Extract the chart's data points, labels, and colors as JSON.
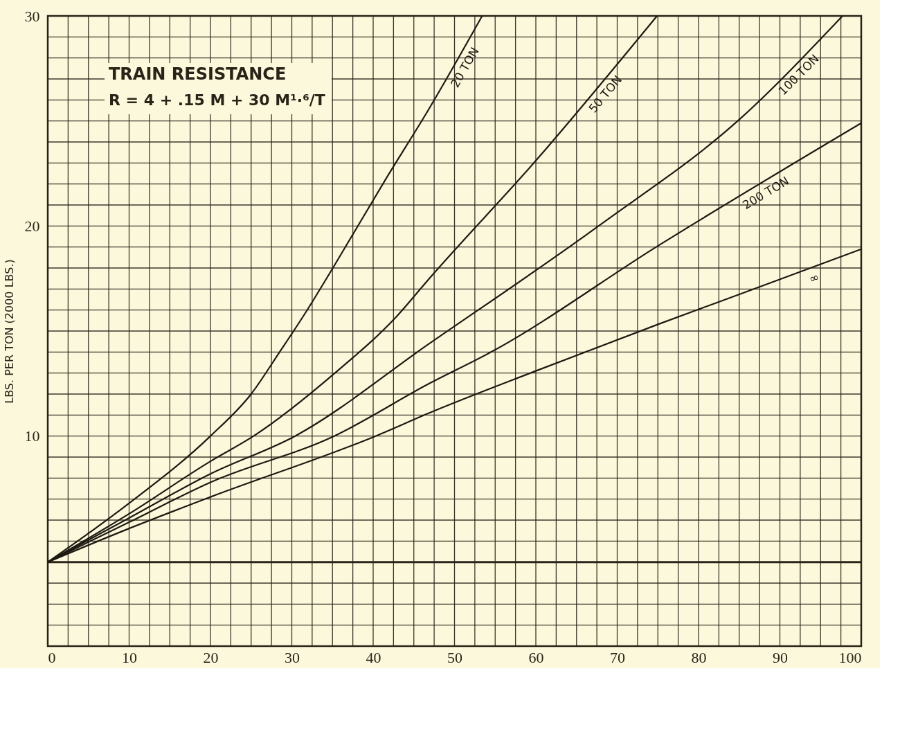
{
  "chart_data": {
    "type": "line",
    "title": "TRAIN RESISTANCE",
    "subtitle": "R = 4 + .15 M + 30 M¹·⁶/T",
    "ylabel": "LBS. PER TON (2000 LBS.)",
    "xlim": [
      0,
      100
    ],
    "ylim": [
      0,
      30
    ],
    "xticks": [
      0,
      {
        "value": 2.5,
        "label": null
      },
      {
        "value": 5,
        "label": null
      },
      {
        "value": 7.5,
        "label": null
      },
      10,
      {
        "value": 12.5,
        "label": null
      },
      {
        "value": 15,
        "label": null
      },
      {
        "value": 17.5,
        "label": null
      },
      20,
      {
        "value": 22.5,
        "label": null
      },
      {
        "value": 25,
        "label": null
      },
      {
        "value": 27.5,
        "label": null
      },
      30,
      {
        "value": 32.5,
        "label": null
      },
      {
        "value": 35,
        "label": null
      },
      {
        "value": 37.5,
        "label": null
      },
      40,
      {
        "value": 42.5,
        "label": null
      },
      {
        "value": 45,
        "label": null
      },
      {
        "value": 47.5,
        "label": null
      },
      50,
      {
        "value": 52.5,
        "label": null
      },
      {
        "value": 55,
        "label": null
      },
      {
        "value": 57.5,
        "label": null
      },
      60,
      {
        "value": 62.5,
        "label": null
      },
      {
        "value": 65,
        "label": null
      },
      {
        "value": 67.5,
        "label": null
      },
      70,
      {
        "value": 72.5,
        "label": null
      },
      {
        "value": 75,
        "label": null
      },
      {
        "value": 77.5,
        "label": null
      },
      80,
      {
        "value": 82.5,
        "label": null
      },
      {
        "value": 85,
        "label": null
      },
      {
        "value": 87.5,
        "label": null
      },
      90,
      {
        "value": 92.5,
        "label": null
      },
      {
        "value": 95,
        "label": null
      },
      {
        "value": 97.5,
        "label": null
      },
      100
    ],
    "yticks": [
      {
        "value": 0,
        "label": null
      },
      {
        "value": 1,
        "label": null
      },
      {
        "value": 2,
        "label": null
      },
      {
        "value": 3,
        "label": null
      },
      {
        "value": 4,
        "label": null
      },
      {
        "value": 5,
        "label": null
      },
      {
        "value": 6,
        "label": null
      },
      {
        "value": 7,
        "label": null
      },
      {
        "value": 8,
        "label": null
      },
      {
        "value": 9,
        "label": null
      },
      10,
      {
        "value": 11,
        "label": null
      },
      {
        "value": 12,
        "label": null
      },
      {
        "value": 13,
        "label": null
      },
      {
        "value": 14,
        "label": null
      },
      {
        "value": 15,
        "label": null
      },
      {
        "value": 16,
        "label": null
      },
      {
        "value": 17,
        "label": null
      },
      {
        "value": 18,
        "label": null
      },
      {
        "value": 19,
        "label": null
      },
      20,
      {
        "value": 21,
        "label": null
      },
      {
        "value": 22,
        "label": null
      },
      {
        "value": 23,
        "label": null
      },
      {
        "value": 24,
        "label": null
      },
      {
        "value": 25,
        "label": null
      },
      {
        "value": 26,
        "label": null
      },
      {
        "value": 27,
        "label": null
      },
      {
        "value": 28,
        "label": null
      },
      {
        "value": 29,
        "label": null
      },
      30
    ],
    "grid": true,
    "marker": "none",
    "line_style": "solid",
    "ref_lines": [
      {
        "axis": "y",
        "value": 4,
        "color": "#2a2418"
      }
    ],
    "series": [
      {
        "name": "20 TON",
        "color": "#1e1a12",
        "x": [
          0,
          10,
          20,
          25,
          28.5,
          31.4,
          35.2,
          41.5,
          46.9,
          53.4
        ],
        "values": [
          4,
          6.8,
          10,
          12,
          14,
          15.7,
          18.1,
          22.2,
          25.6,
          30
        ]
      },
      {
        "name": "50 TON",
        "color": "#1e1a12",
        "x": [
          0,
          10,
          20,
          25.3,
          35.3,
          42.9,
          46.9,
          60.2,
          74.9
        ],
        "values": [
          4,
          6.3,
          8.8,
          10,
          13,
          15.7,
          17.5,
          23.2,
          30
        ]
      },
      {
        "name": "100 TON",
        "color": "#1e1a12",
        "x": [
          0,
          10,
          20,
          30.4,
          46.9,
          67.7,
          85.1,
          97.7
        ],
        "values": [
          4,
          6.1,
          8.2,
          10,
          14.4,
          20,
          25.1,
          30
        ]
      },
      {
        "name": "200 TON",
        "color": "#1e1a12",
        "x": [
          0,
          10,
          20,
          35.2,
          46.9,
          54.5,
          75.2,
          100
        ],
        "values": [
          4,
          5.9,
          7.8,
          10,
          12.5,
          14,
          19.1,
          24.9
        ]
      },
      {
        "name": "∞",
        "color": "#1e1a12",
        "x": [
          0,
          10,
          20,
          40.3,
          46.9,
          60,
          74.9,
          87.5,
          100
        ],
        "values": [
          4,
          5.6,
          7.1,
          10,
          11.1,
          13.1,
          15.3,
          17.1,
          18.9
        ]
      }
    ]
  }
}
